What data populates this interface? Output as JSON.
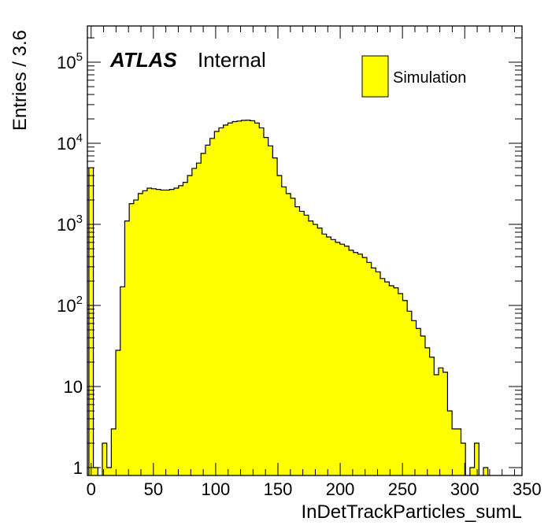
{
  "chart_data": {
    "type": "bar",
    "title": "",
    "xlabel": "InDetTrackParticles_sumL",
    "ylabel": "Entries / 3.6",
    "xlim": [
      -3,
      346
    ],
    "ylim": [
      0.8,
      280000
    ],
    "yscale": "log",
    "bin_width": 3.6,
    "grid": false,
    "legend_position": "top-right",
    "fill_color": "#ffff00",
    "line_color": "#000000",
    "x_ticks": [
      "0",
      "50",
      "100",
      "150",
      "200",
      "250",
      "300",
      "350"
    ],
    "y_ticks": [
      {
        "base": "1",
        "exp": ""
      },
      {
        "base": "10",
        "exp": ""
      },
      {
        "base": "10",
        "exp": "2"
      },
      {
        "base": "10",
        "exp": "3"
      },
      {
        "base": "10",
        "exp": "4"
      },
      {
        "base": "10",
        "exp": "5"
      }
    ],
    "atlas_label": "ATLAS",
    "atlas_sublabel": "Internal",
    "series": [
      {
        "name": "Simulation",
        "bins": [
          [
            -1.8,
            5000
          ],
          [
            1.8,
            1
          ],
          [
            9.0,
            2
          ],
          [
            12.6,
            1
          ],
          [
            16.2,
            3
          ],
          [
            19.8,
            28
          ],
          [
            23.4,
            170
          ],
          [
            27.0,
            1100
          ],
          [
            30.6,
            1800
          ],
          [
            34.2,
            2000
          ],
          [
            37.8,
            2400
          ],
          [
            41.4,
            2600
          ],
          [
            45.0,
            2800
          ],
          [
            48.6,
            2750
          ],
          [
            52.2,
            2700
          ],
          [
            55.8,
            2650
          ],
          [
            59.4,
            2650
          ],
          [
            63.0,
            2700
          ],
          [
            66.6,
            2800
          ],
          [
            70.2,
            3000
          ],
          [
            73.8,
            3300
          ],
          [
            77.4,
            4000
          ],
          [
            81.0,
            4900
          ],
          [
            84.6,
            5700
          ],
          [
            88.2,
            7500
          ],
          [
            91.8,
            9500
          ],
          [
            95.4,
            11500
          ],
          [
            99.0,
            14000
          ],
          [
            102.6,
            15500
          ],
          [
            106.2,
            16800
          ],
          [
            109.8,
            17800
          ],
          [
            113.4,
            18500
          ],
          [
            117.0,
            18800
          ],
          [
            120.6,
            19200
          ],
          [
            124.2,
            19300
          ],
          [
            127.8,
            19000
          ],
          [
            131.4,
            17800
          ],
          [
            135.0,
            15500
          ],
          [
            138.6,
            11800
          ],
          [
            142.2,
            9300
          ],
          [
            145.8,
            6600
          ],
          [
            149.4,
            4000
          ],
          [
            153.0,
            2900
          ],
          [
            156.6,
            2400
          ],
          [
            160.2,
            2100
          ],
          [
            163.8,
            1650
          ],
          [
            167.4,
            1450
          ],
          [
            171.0,
            1300
          ],
          [
            174.6,
            1100
          ],
          [
            178.2,
            1000
          ],
          [
            181.8,
            900
          ],
          [
            185.4,
            760
          ],
          [
            189.0,
            700
          ],
          [
            192.6,
            650
          ],
          [
            196.2,
            600
          ],
          [
            199.8,
            570
          ],
          [
            203.4,
            540
          ],
          [
            207.0,
            480
          ],
          [
            210.6,
            450
          ],
          [
            214.2,
            430
          ],
          [
            217.8,
            390
          ],
          [
            221.4,
            340
          ],
          [
            225.0,
            290
          ],
          [
            228.6,
            260
          ],
          [
            232.2,
            215
          ],
          [
            235.8,
            195
          ],
          [
            239.4,
            175
          ],
          [
            243.0,
            165
          ],
          [
            246.6,
            140
          ],
          [
            250.2,
            115
          ],
          [
            253.8,
            85
          ],
          [
            257.4,
            65
          ],
          [
            261.0,
            52
          ],
          [
            264.6,
            42
          ],
          [
            268.2,
            30
          ],
          [
            271.8,
            23
          ],
          [
            275.4,
            14
          ],
          [
            279.0,
            17
          ],
          [
            282.6,
            15
          ],
          [
            286.2,
            5
          ],
          [
            289.8,
            3
          ],
          [
            293.4,
            3
          ],
          [
            297.0,
            2
          ],
          [
            304.2,
            1
          ],
          [
            307.8,
            2
          ],
          [
            315.0,
            1
          ]
        ]
      }
    ]
  }
}
